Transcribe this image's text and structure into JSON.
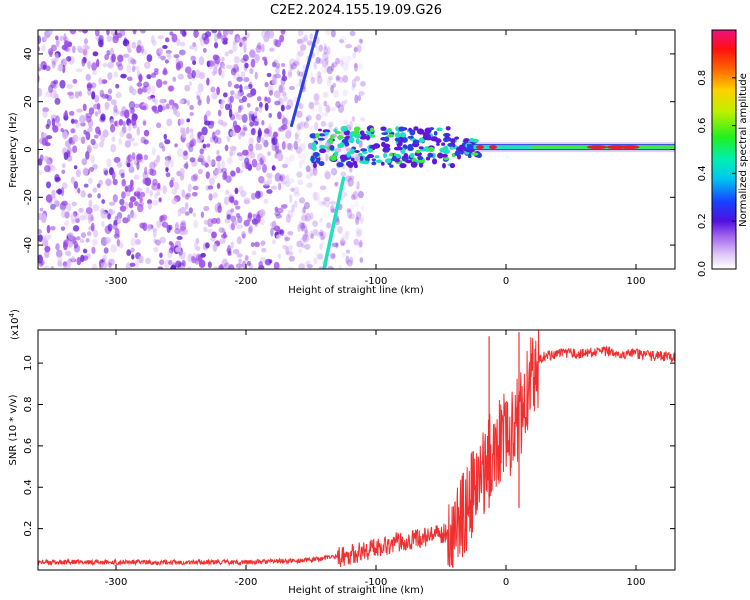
{
  "title": "C2E2.2024.155.19.09.G26",
  "colors": {
    "snr_line": "#f03030",
    "spec_light": "#d8b8f4",
    "spec_mid": "#9a44e6",
    "spec_dark": "#6018d8",
    "spec_blue": "#2a40e0",
    "spec_cyan": "#20e0c0",
    "spec_green": "#40e840",
    "spec_red": "#e02030"
  },
  "chart_data": [
    {
      "type": "heatmap",
      "title": "C2E2.2024.155.19.09.G26",
      "xlabel": "Height of straight line (km)",
      "ylabel": "Frequency (Hz)",
      "xlim": [
        -360,
        130
      ],
      "ylim": [
        -50,
        50
      ],
      "x_ticks": [
        -300,
        -200,
        -100,
        0,
        100
      ],
      "x_tick_labels": [
        "-300",
        "-200",
        "-100",
        "0",
        "100"
      ],
      "y_ticks": [
        -40,
        -20,
        0,
        20,
        40
      ],
      "y_tick_labels": [
        "-40",
        "-20",
        "0",
        "20",
        "40"
      ],
      "colorbar": {
        "label": "Normalized spectral amplitude",
        "range": [
          0,
          1
        ],
        "ticks": [
          0.0,
          0.2,
          0.4,
          0.6,
          0.8
        ],
        "tick_labels": [
          "0.0",
          "0.2",
          "0.4",
          "0.6",
          "0.8"
        ]
      },
      "features": [
        {
          "name": "carrier-band",
          "x_range": [
            -150,
            130
          ],
          "frequency_hz": 1,
          "amplitude_range": [
            0.3,
            0.95
          ]
        },
        {
          "name": "diagonal-streak-upper",
          "x_from": -165,
          "x_to": -145,
          "freq_from": 10,
          "freq_to": 50
        },
        {
          "name": "diagonal-streak-lower",
          "x_from": -140,
          "x_to": -125,
          "freq_from": -50,
          "freq_to": -12
        },
        {
          "name": "scatter-noise",
          "x_range": [
            -360,
            -110
          ],
          "freq_range": [
            -50,
            50
          ],
          "amplitude_range": [
            0,
            0.25
          ]
        }
      ]
    },
    {
      "type": "line",
      "xlabel": "Height of straight line (km)",
      "ylabel": "SNR (10 * v/v)",
      "y_scale_label": "(x10",
      "y_scale_exponent": "4",
      "y_scale_close": ")",
      "xlim": [
        -360,
        130
      ],
      "ylim": [
        0,
        1.16
      ],
      "x_ticks": [
        -300,
        -200,
        -100,
        0,
        100
      ],
      "x_tick_labels": [
        "-300",
        "-200",
        "-100",
        "0",
        "100"
      ],
      "y_ticks": [
        0.2,
        0.4,
        0.6,
        0.8,
        1.0
      ],
      "y_tick_labels": [
        "0.2",
        "0.4",
        "0.6",
        "0.8",
        "1.0"
      ],
      "series": [
        {
          "name": "SNR",
          "x": [
            -360,
            -300,
            -250,
            -200,
            -150,
            -130,
            -110,
            -100,
            -80,
            -60,
            -50,
            -40,
            -30,
            -20,
            -15,
            -10,
            -5,
            0,
            5,
            10,
            15,
            20,
            25,
            30,
            40,
            50,
            60,
            70,
            80,
            90,
            100,
            110,
            120,
            130
          ],
          "values": [
            0.04,
            0.04,
            0.04,
            0.04,
            0.05,
            0.07,
            0.1,
            0.12,
            0.15,
            0.17,
            0.18,
            0.22,
            0.35,
            0.48,
            0.55,
            0.62,
            0.68,
            0.72,
            0.7,
            0.78,
            0.9,
            0.98,
            1.02,
            1.04,
            1.05,
            1.05,
            1.05,
            1.06,
            1.06,
            1.05,
            1.05,
            1.04,
            1.04,
            1.03
          ],
          "spikes": [
            {
              "x": -13,
              "value": 1.13
            },
            {
              "x": 10,
              "value": 1.15
            }
          ]
        }
      ]
    }
  ]
}
